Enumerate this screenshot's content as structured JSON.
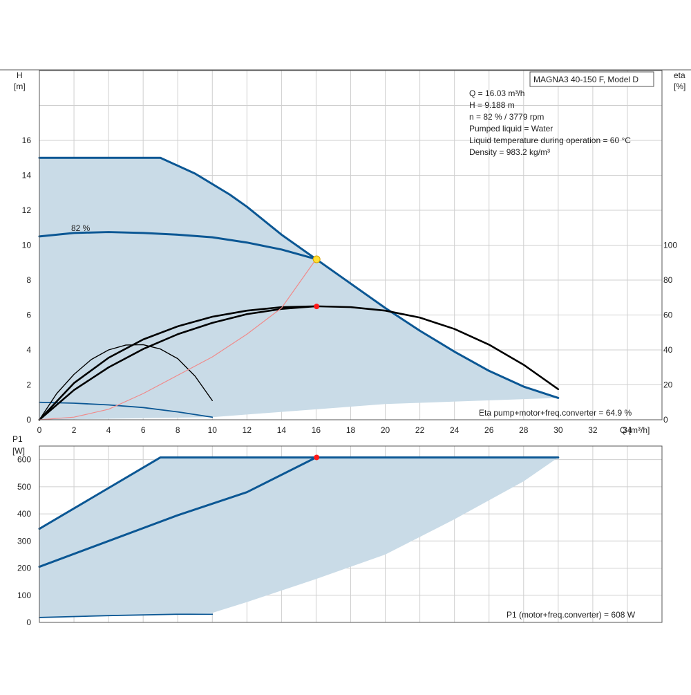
{
  "colors": {
    "envelope_fill": "#c9dbe7",
    "pump_curve": "#0b5794",
    "efficiency_curve": "#000000",
    "system_curve": "#f08a8a",
    "operating_point_head": "#ffe033",
    "operating_point_eff": "#ff1a1a",
    "grid": "#cfcfcf",
    "frame": "#555555"
  },
  "title_box": "MAGNA3 40-150 F, Model D",
  "info_lines": [
    "Q = 16.03 m³/h",
    "H = 9.188 m",
    "n = 82 % / 3779 rpm",
    "Pumped liquid = Water",
    "Liquid temperature during operation = 60 °C",
    "Density = 983.2 kg/m³"
  ],
  "chart_data": [
    {
      "type": "line",
      "name_hint": "head-and-efficiency",
      "xlabel": "Q [m³/h]",
      "ylabel_left": [
        "H",
        "[m]"
      ],
      "ylabel_right": [
        "eta",
        "[%]"
      ],
      "xlim": [
        0,
        36
      ],
      "ylim_left": [
        0,
        20
      ],
      "ylim_right": [
        0,
        200
      ],
      "x_ticks": [
        0,
        2,
        4,
        6,
        8,
        10,
        12,
        14,
        16,
        18,
        20,
        22,
        24,
        26,
        28,
        30,
        32,
        34
      ],
      "y_left_ticks": [
        0,
        2,
        4,
        6,
        8,
        10,
        12,
        14,
        16
      ],
      "y_right_ticks": [
        0,
        20,
        40,
        60,
        80,
        100
      ],
      "grid": true,
      "curve_label": "82 %",
      "eta_text": "Eta pump+motor+freq.converter = 64.9 %",
      "envelope": [
        [
          0,
          15
        ],
        [
          7,
          15
        ],
        [
          9,
          14.1
        ],
        [
          12,
          12.2
        ],
        [
          14,
          10.6
        ],
        [
          16,
          9.2
        ],
        [
          18,
          7.8
        ],
        [
          20,
          6.4
        ],
        [
          22,
          5.1
        ],
        [
          24,
          3.9
        ],
        [
          26,
          2.8
        ],
        [
          28,
          1.9
        ],
        [
          30,
          1.25
        ],
        [
          20,
          0.9
        ],
        [
          10,
          0.15
        ],
        [
          0,
          0
        ]
      ],
      "series": [
        {
          "style": "pump",
          "points": [
            [
              0,
              15
            ],
            [
              7,
              15
            ],
            [
              9,
              14.1
            ],
            [
              11,
              12.9
            ],
            [
              12,
              12.2
            ],
            [
              14,
              10.6
            ],
            [
              16,
              9.2
            ],
            [
              18,
              7.8
            ],
            [
              20,
              6.4
            ],
            [
              22,
              5.1
            ],
            [
              24,
              3.9
            ],
            [
              26,
              2.8
            ],
            [
              28,
              1.9
            ],
            [
              30,
              1.25
            ]
          ]
        },
        {
          "style": "pump",
          "points": [
            [
              0,
              10.5
            ],
            [
              2,
              10.7
            ],
            [
              4,
              10.75
            ],
            [
              6,
              10.7
            ],
            [
              8,
              10.6
            ],
            [
              10,
              10.45
            ],
            [
              12,
              10.15
            ],
            [
              14,
              9.75
            ],
            [
              16,
              9.2
            ]
          ]
        },
        {
          "style": "pump_thin",
          "points": [
            [
              0,
              1
            ],
            [
              2,
              0.95
            ],
            [
              4,
              0.85
            ],
            [
              6,
              0.7
            ],
            [
              8,
              0.45
            ],
            [
              10,
              0.15
            ]
          ]
        },
        {
          "style": "eff",
          "points": [
            [
              0,
              0
            ],
            [
              2,
              1.7
            ],
            [
              4,
              3.0
            ],
            [
              6,
              4.05
            ],
            [
              8,
              4.9
            ],
            [
              10,
              5.55
            ],
            [
              12,
              6.05
            ],
            [
              14,
              6.35
            ],
            [
              16,
              6.5
            ],
            [
              18,
              6.45
            ],
            [
              20,
              6.25
            ],
            [
              22,
              5.85
            ],
            [
              24,
              5.2
            ],
            [
              26,
              4.3
            ],
            [
              28,
              3.15
            ],
            [
              30,
              1.75
            ]
          ]
        },
        {
          "style": "eff",
          "points": [
            [
              0,
              0
            ],
            [
              2,
              2.1
            ],
            [
              4,
              3.55
            ],
            [
              6,
              4.6
            ],
            [
              8,
              5.35
            ],
            [
              10,
              5.9
            ],
            [
              12,
              6.25
            ],
            [
              14,
              6.45
            ],
            [
              16,
              6.5
            ]
          ]
        },
        {
          "style": "eff_thin",
          "points": [
            [
              0,
              0
            ],
            [
              1,
              1.5
            ],
            [
              2,
              2.6
            ],
            [
              3,
              3.45
            ],
            [
              4,
              4.0
            ],
            [
              5,
              4.28
            ],
            [
              6,
              4.3
            ],
            [
              7,
              4.05
            ],
            [
              8,
              3.5
            ],
            [
              9,
              2.5
            ],
            [
              10,
              1.1
            ]
          ]
        },
        {
          "style": "system",
          "points": [
            [
              0,
              0
            ],
            [
              2,
              0.15
            ],
            [
              4,
              0.6
            ],
            [
              6,
              1.5
            ],
            [
              8,
              2.55
            ],
            [
              10,
              3.6
            ],
            [
              12,
              4.9
            ],
            [
              14,
              6.4
            ],
            [
              16,
              9.2
            ]
          ]
        }
      ],
      "operating_points": [
        {
          "style": "head_point",
          "x": 16.03,
          "y": 9.188
        },
        {
          "style": "eff_point",
          "x": 16.03,
          "y": 6.49
        }
      ]
    },
    {
      "type": "line",
      "name_hint": "power",
      "xlabel": "",
      "ylabel_left": [
        "P1",
        "[W]"
      ],
      "xlim": [
        0,
        36
      ],
      "ylim": [
        0,
        650
      ],
      "y_ticks": [
        0,
        100,
        200,
        300,
        400,
        500,
        600
      ],
      "grid": true,
      "p1_text": "P1 (motor+freq.converter) = 608 W",
      "envelope": [
        [
          0,
          345
        ],
        [
          7,
          608
        ],
        [
          30,
          608
        ],
        [
          28,
          520
        ],
        [
          24,
          380
        ],
        [
          20,
          250
        ],
        [
          16,
          160
        ],
        [
          12,
          75
        ],
        [
          10,
          35
        ],
        [
          8,
          30
        ],
        [
          4,
          25
        ],
        [
          0,
          18
        ]
      ],
      "series": [
        {
          "style": "pump",
          "points": [
            [
              0,
              345
            ],
            [
              7,
              608
            ],
            [
              30,
              608
            ]
          ]
        },
        {
          "style": "pump",
          "points": [
            [
              0,
              205
            ],
            [
              4,
              300
            ],
            [
              8,
              395
            ],
            [
              12,
              480
            ],
            [
              16,
              608
            ]
          ]
        },
        {
          "style": "pump_thin",
          "points": [
            [
              0,
              18
            ],
            [
              4,
              25
            ],
            [
              8,
              30
            ],
            [
              10,
              30
            ]
          ]
        }
      ],
      "operating_points": [
        {
          "style": "eff_point",
          "x": 16.03,
          "y": 608
        }
      ]
    }
  ]
}
